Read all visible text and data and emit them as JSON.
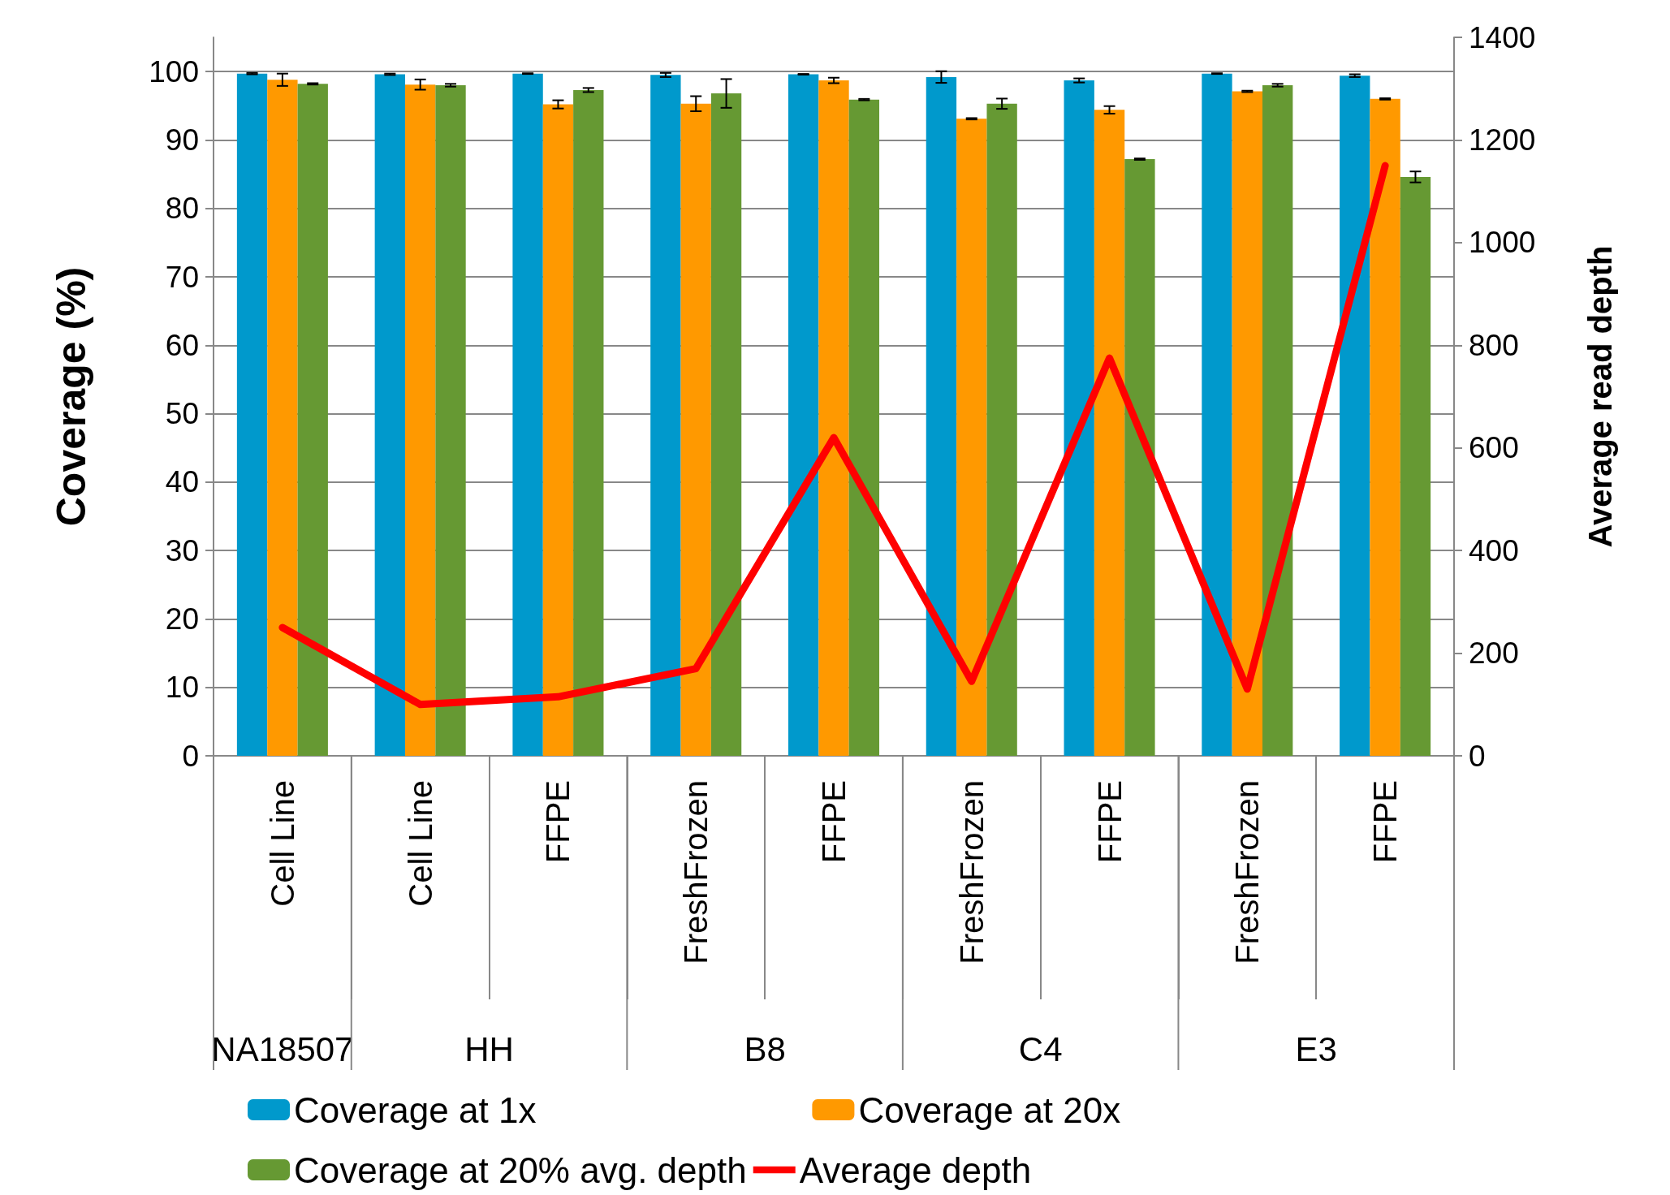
{
  "chart_data": {
    "type": "bar",
    "ylabel": "Coverage (%)",
    "y2label": "Average read depth",
    "categories": [
      "Cell Line",
      "Cell Line",
      "FFPE",
      "FreshFrozen",
      "FFPE",
      "FreshFrozen",
      "FFPE",
      "FreshFrozen",
      "FFPE"
    ],
    "annotations": [
      "NA18507",
      "HH",
      "B8",
      "C4",
      "E3"
    ],
    "series": [
      {
        "name": "Coverage at 1x",
        "color": "#0099cc",
        "values": [
          99.7,
          99.6,
          99.7,
          99.5,
          99.6,
          99.2,
          98.7,
          99.7,
          99.4
        ],
        "errors": [
          0.1,
          0.1,
          0.05,
          0.3,
          0.05,
          0.85,
          0.3,
          0.05,
          0.2
        ]
      },
      {
        "name": "Coverage at 20x",
        "color": "#ff9900",
        "values": [
          98.8,
          98.1,
          95.2,
          95.3,
          98.7,
          93.1,
          94.4,
          97.1,
          96.0
        ],
        "errors": [
          0.9,
          0.75,
          0.6,
          1.1,
          0.4,
          0.1,
          0.55,
          0.1,
          0.1
        ]
      },
      {
        "name": "Coverage at 20% avg. depth",
        "color": "#669933",
        "values": [
          98.2,
          98.0,
          97.3,
          96.8,
          95.9,
          95.3,
          87.2,
          98.0,
          84.6
        ],
        "errors": [
          0.1,
          0.2,
          0.3,
          2.1,
          0.1,
          0.75,
          0.1,
          0.2,
          0.8
        ]
      },
      {
        "name": "Average depth",
        "color": "#ff0000",
        "type": "line",
        "axis": "y2",
        "line_style": "solid",
        "values": [
          250,
          100,
          115,
          170,
          620,
          145,
          775,
          130,
          1150
        ]
      }
    ],
    "ylim": [
      0,
      105
    ],
    "yticks": [
      0,
      10,
      20,
      30,
      40,
      50,
      60,
      70,
      80,
      90,
      100
    ],
    "y2lim": [
      0,
      1400
    ],
    "y2ticks": [
      0,
      200,
      400,
      600,
      800,
      1000,
      1200,
      1400
    ],
    "grid": "y",
    "legend": "bottom"
  }
}
